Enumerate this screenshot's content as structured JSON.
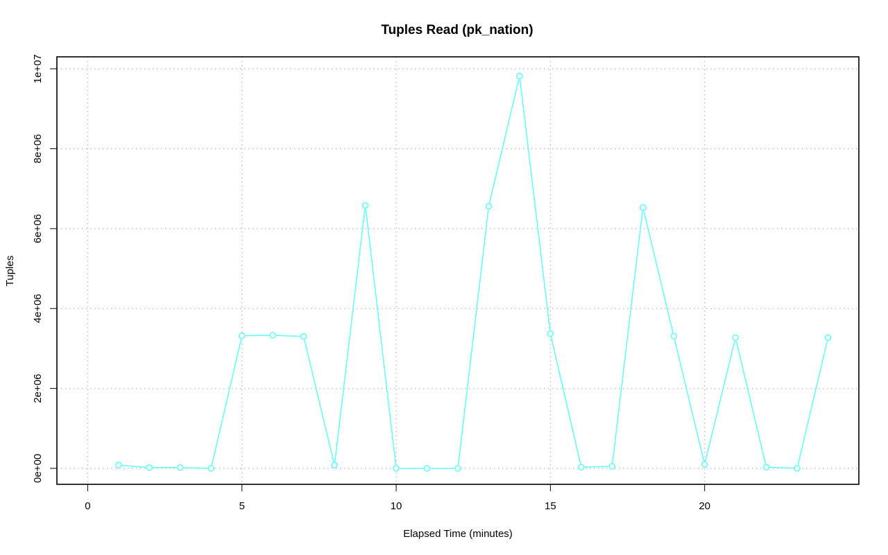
{
  "chart_data": {
    "type": "line",
    "title": "Tuples Read (pk_nation)",
    "xlabel": "Elapsed Time (minutes)",
    "ylabel": "Tuples",
    "xlim": [
      -1,
      25
    ],
    "ylim": [
      -400000,
      10300000
    ],
    "x_ticks": [
      0,
      5,
      10,
      15,
      20
    ],
    "x_tick_labels": [
      "0",
      "5",
      "10",
      "15",
      "20"
    ],
    "y_ticks": [
      0,
      2000000,
      4000000,
      6000000,
      8000000,
      10000000
    ],
    "y_tick_labels": [
      "0e+00",
      "2e+06",
      "4e+06",
      "6e+06",
      "8e+06",
      "1e+07"
    ],
    "grid": true,
    "series": [
      {
        "color": "#66ffff",
        "marker": "circle",
        "x": [
          1,
          2,
          3,
          4,
          5,
          6,
          7,
          8,
          9,
          10,
          11,
          12,
          13,
          14,
          15,
          16,
          17,
          18,
          19,
          20,
          21,
          22,
          23,
          24
        ],
        "y": [
          80000,
          20000,
          20000,
          0,
          3320000,
          3330000,
          3300000,
          80000,
          6580000,
          0,
          0,
          0,
          6560000,
          9820000,
          3370000,
          30000,
          50000,
          6530000,
          3310000,
          100000,
          3270000,
          30000,
          0,
          3270000
        ]
      }
    ]
  }
}
